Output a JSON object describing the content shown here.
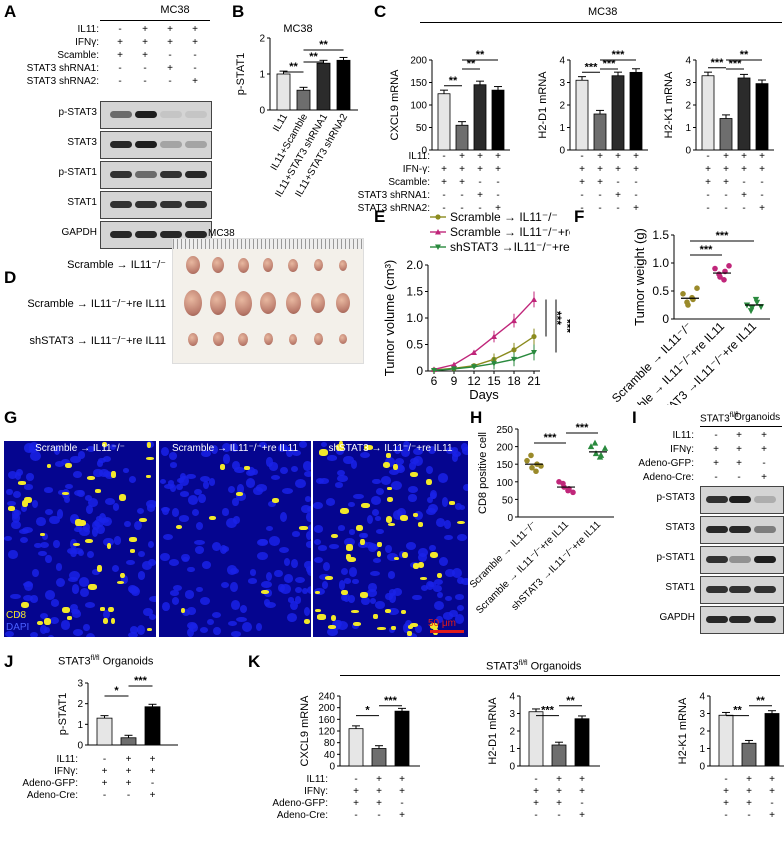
{
  "panels": {
    "A": "A",
    "B": "B",
    "C": "C",
    "D": "D",
    "E": "E",
    "F": "F",
    "G": "G",
    "H": "H",
    "I": "I",
    "J": "J",
    "K": "K"
  },
  "panelA": {
    "header": "MC38",
    "conditions": [
      {
        "label": "IL11:",
        "values": [
          "-",
          "+",
          "+",
          "+"
        ]
      },
      {
        "label": "IFNγ:",
        "values": [
          "+",
          "+",
          "+",
          "+"
        ]
      },
      {
        "label": "Scamble:",
        "values": [
          "+",
          "+",
          "-",
          "-"
        ]
      },
      {
        "label": "STAT3 shRNA1:",
        "values": [
          "-",
          "-",
          "+",
          "-"
        ]
      },
      {
        "label": "STAT3 shRNA2:",
        "values": [
          "-",
          "-",
          "-",
          "+"
        ]
      }
    ],
    "blots": [
      "p-STAT3",
      "STAT3",
      "p-STAT1",
      "STAT1",
      "GAPDH"
    ]
  },
  "panelB": {
    "header": "MC38",
    "ylabel": "p-STAT1",
    "sig": [
      "**",
      "**",
      "**"
    ]
  },
  "panelC": {
    "header": "MC38",
    "conditions": [
      {
        "label": "IL11:",
        "values": [
          "-",
          "+",
          "+",
          "+"
        ]
      },
      {
        "label": "IFN-γ:",
        "values": [
          "+",
          "+",
          "+",
          "+"
        ]
      },
      {
        "label": "Scamble:",
        "values": [
          "+",
          "+",
          "-",
          "-"
        ]
      },
      {
        "label": "STAT3 shRNA1:",
        "values": [
          "-",
          "-",
          "+",
          "-"
        ]
      },
      {
        "label": "STAT3 shRNA2:",
        "values": [
          "-",
          "-",
          "-",
          "+"
        ]
      }
    ]
  },
  "panelD": {
    "header": "MC38",
    "rows": [
      "Scramble → IL11⁻/⁻",
      "Scramble → IL11⁻/⁻+re IL11",
      "shSTAT3 → IL11⁻/⁻+re IL11"
    ]
  },
  "panelE": {
    "sig": [
      "***",
      "***"
    ]
  },
  "panelF": {
    "sig": [
      "***",
      "***"
    ]
  },
  "panelG": {
    "titles": [
      "Scramble → IL11⁻/⁻",
      "Scramble → IL11⁻/⁻+re IL11",
      "shSTAT3 → IL11⁻/⁻+re IL11"
    ],
    "legend_cd8": "CD8",
    "legend_dapi": "DAPI",
    "scalebar": "50 μm"
  },
  "panelH": {
    "sig": [
      "***",
      "***"
    ]
  },
  "panelI": {
    "header_left": "STAT3",
    "header_sup": "fl/fl",
    "header_right": "Organoids",
    "conditions": [
      {
        "label": "IL11:",
        "values": [
          "-",
          "+",
          "+"
        ]
      },
      {
        "label": "IFNγ:",
        "values": [
          "+",
          "+",
          "+"
        ]
      },
      {
        "label": "Adeno-GFP:",
        "values": [
          "+",
          "+",
          "-"
        ]
      },
      {
        "label": "Adeno-Cre:",
        "values": [
          "-",
          "-",
          "+"
        ]
      }
    ],
    "blots": [
      "p-STAT3",
      "STAT3",
      "p-STAT1",
      "STAT1",
      "GAPDH"
    ]
  },
  "panelJ": {
    "header_left": "STAT3",
    "header_sup": "fl/fl",
    "header_right": " Organoids",
    "sig": [
      "*",
      "***"
    ],
    "conditions": [
      {
        "label": "IL11:",
        "values": [
          "-",
          "+",
          "+"
        ]
      },
      {
        "label": "IFNγ:",
        "values": [
          "+",
          "+",
          "+"
        ]
      },
      {
        "label": "Adeno-GFP:",
        "values": [
          "+",
          "+",
          "-"
        ]
      },
      {
        "label": "Adeno-Cre:",
        "values": [
          "-",
          "-",
          "+"
        ]
      }
    ]
  },
  "panelK": {
    "header_left": "STAT3",
    "header_sup": "fl/fl",
    "header_right": " Organoids",
    "conditions": [
      {
        "label": "IL11:",
        "values": [
          "-",
          "+",
          "+"
        ]
      },
      {
        "label": "IFNγ:",
        "values": [
          "+",
          "+",
          "+"
        ]
      },
      {
        "label": "Adeno-GFP:",
        "values": [
          "+",
          "+",
          "-"
        ]
      },
      {
        "label": "Adeno-Cre:",
        "values": [
          "-",
          "-",
          "+"
        ]
      }
    ]
  },
  "chart_data": [
    {
      "panel": "B",
      "type": "bar",
      "title": "MC38",
      "ylabel": "p-STAT1",
      "ylim": [
        0,
        2
      ],
      "categories": [
        "IL11",
        "IL11+Scamble",
        "IL11+STAT3 shRNA1",
        "IL11+STAT3 shRNA2"
      ],
      "values": [
        1.0,
        0.55,
        1.3,
        1.38
      ],
      "colors": [
        "#e6e6e6",
        "#6e6e6e",
        "#2b2b2b",
        "#000000"
      ]
    },
    {
      "panel": "C",
      "type": "bar",
      "ylabel": "CXCL9 mRNA",
      "ylim": [
        0,
        200
      ],
      "values": [
        125,
        55,
        145,
        133
      ],
      "sig": [
        "**",
        "**",
        "**"
      ],
      "ticks": [
        "0",
        "50",
        "100",
        "150",
        "200"
      ],
      "colors": [
        "#e6e6e6",
        "#6e6e6e",
        "#2b2b2b",
        "#000000"
      ]
    },
    {
      "panel": "C",
      "type": "bar",
      "ylabel": "H2-D1 mRNA",
      "ylim": [
        0,
        4
      ],
      "values": [
        3.1,
        1.6,
        3.3,
        3.45
      ],
      "sig": [
        "***",
        "***",
        "***"
      ],
      "ticks": [
        "0",
        "1",
        "2",
        "3",
        "4"
      ],
      "colors": [
        "#e6e6e6",
        "#6e6e6e",
        "#2b2b2b",
        "#000000"
      ]
    },
    {
      "panel": "C",
      "type": "bar",
      "ylabel": "H2-K1 mRNA",
      "ylim": [
        0,
        4
      ],
      "values": [
        3.3,
        1.4,
        3.2,
        2.95
      ],
      "sig": [
        "***",
        "***",
        "**"
      ],
      "ticks": [
        "0",
        "1",
        "2",
        "3",
        "4"
      ],
      "colors": [
        "#e6e6e6",
        "#6e6e6e",
        "#2b2b2b",
        "#000000"
      ]
    },
    {
      "panel": "E",
      "type": "line",
      "xlabel": "Days",
      "ylabel": "Tumor volume (cm³)",
      "ylim": [
        0,
        2.0
      ],
      "x": [
        6,
        9,
        12,
        15,
        18,
        21
      ],
      "yticks": [
        "0",
        "0.5",
        "1.0",
        "1.5",
        "2.0"
      ],
      "series": [
        {
          "name": "Scramble → IL11⁻/⁻",
          "color": "#8b8b1e",
          "marker": "circle",
          "values": [
            0.02,
            0.05,
            0.1,
            0.22,
            0.4,
            0.65
          ]
        },
        {
          "name": "Scramble → IL11⁻/⁻+re IL11",
          "color": "#c0267a",
          "marker": "triangle-up",
          "values": [
            0.03,
            0.12,
            0.35,
            0.65,
            0.95,
            1.35
          ]
        },
        {
          "name": "shSTAT3 →IL11⁻/⁻+re IL11",
          "color": "#2a8a3e",
          "marker": "triangle-down",
          "values": [
            0.01,
            0.04,
            0.08,
            0.14,
            0.22,
            0.35
          ]
        }
      ]
    },
    {
      "panel": "F",
      "type": "scatter",
      "ylabel": "Tumor weight (g)",
      "ylim": [
        0,
        1.5
      ],
      "yticks": [
        "0",
        "0.5",
        "1.0",
        "1.5"
      ],
      "categories": [
        "Scramble → IL11⁻/⁻",
        "Scramble → IL11⁻/⁻+re IL11",
        "shSTAT3 →IL11⁻/⁻+re IL11"
      ],
      "series": [
        {
          "color": "#9a8a2a",
          "marker": "circle",
          "values": [
            0.45,
            0.25,
            0.35,
            0.3,
            0.38,
            0.55
          ],
          "mean": 0.37
        },
        {
          "color": "#c0267a",
          "marker": "circle",
          "values": [
            0.9,
            0.75,
            0.85,
            0.8,
            0.7,
            0.95
          ],
          "mean": 0.82
        },
        {
          "color": "#2a8a3e",
          "marker": "triangle-down",
          "values": [
            0.25,
            0.2,
            0.3,
            0.15,
            0.35,
            0.22
          ],
          "mean": 0.25
        }
      ]
    },
    {
      "panel": "H",
      "type": "scatter",
      "ylabel": "CD8 positive cell",
      "ylim": [
        0,
        250
      ],
      "yticks": [
        "0",
        "50",
        "100",
        "150",
        "200",
        "250"
      ],
      "categories": [
        "Scramble → IL11⁻/⁻",
        "Scramble → IL11⁻/⁻+re IL11",
        "shSTAT3 →IL11⁻/⁻+re IL11"
      ],
      "series": [
        {
          "color": "#9a8a2a",
          "marker": "circle",
          "values": [
            160,
            140,
            150,
            175,
            130,
            145
          ],
          "mean": 150
        },
        {
          "color": "#c0267a",
          "marker": "circle",
          "values": [
            100,
            85,
            80,
            95,
            75,
            70
          ],
          "mean": 85
        },
        {
          "color": "#2a8a3e",
          "marker": "triangle-up",
          "values": [
            200,
            180,
            175,
            210,
            170,
            195
          ],
          "mean": 185
        }
      ]
    },
    {
      "panel": "J",
      "type": "bar",
      "ylabel": "p-STAT1",
      "ylim": [
        0,
        3
      ],
      "values": [
        1.3,
        0.35,
        1.85
      ],
      "yticks": [
        "0",
        "1",
        "2",
        "3"
      ],
      "colors": [
        "#e6e6e6",
        "#6e6e6e",
        "#000000"
      ]
    },
    {
      "panel": "K",
      "type": "bar",
      "ylabel": "CXCL9 mRNA",
      "ylim": [
        0,
        240
      ],
      "values": [
        128,
        60,
        188
      ],
      "sig": [
        "*",
        "***"
      ],
      "yticks": [
        "0",
        "40",
        "80",
        "120",
        "160",
        "200",
        "240"
      ],
      "colors": [
        "#e6e6e6",
        "#6e6e6e",
        "#000000"
      ]
    },
    {
      "panel": "K",
      "type": "bar",
      "ylabel": "H2-D1 mRNA",
      "ylim": [
        0,
        4
      ],
      "values": [
        3.1,
        1.2,
        2.7
      ],
      "sig": [
        "***",
        "**"
      ],
      "yticks": [
        "0",
        "1",
        "2",
        "3",
        "4"
      ],
      "colors": [
        "#e6e6e6",
        "#6e6e6e",
        "#000000"
      ]
    },
    {
      "panel": "K",
      "type": "bar",
      "ylabel": "H2-K1 mRNA",
      "ylim": [
        0,
        4
      ],
      "values": [
        2.9,
        1.3,
        3.0
      ],
      "sig": [
        "**",
        "**"
      ],
      "yticks": [
        "0",
        "1",
        "2",
        "3",
        "4"
      ],
      "colors": [
        "#e6e6e6",
        "#6e6e6e",
        "#000000"
      ]
    }
  ]
}
